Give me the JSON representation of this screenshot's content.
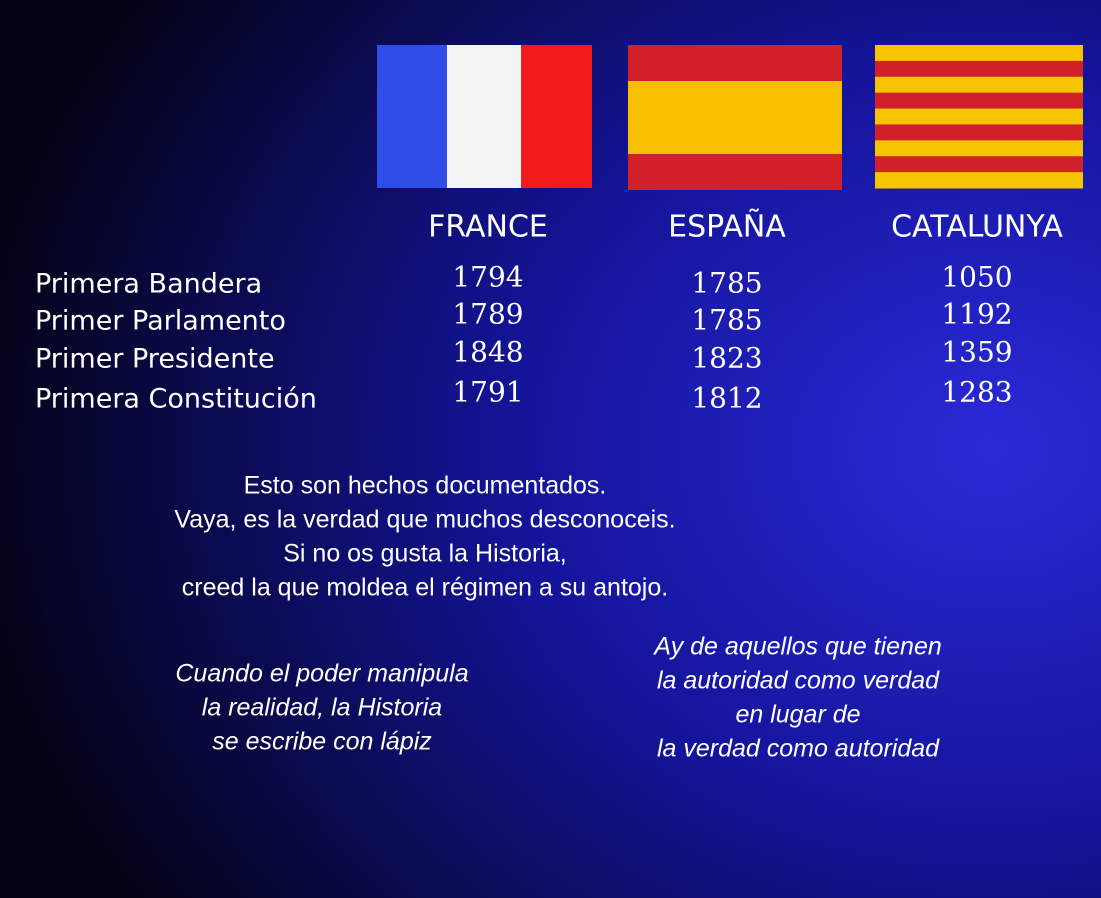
{
  "table": {
    "columns": [
      "FRANCE",
      "ESPAÑA",
      "CATALUNYA"
    ],
    "rows": [
      {
        "label": "Primera Bandera",
        "values": [
          1794,
          1785,
          1050
        ]
      },
      {
        "label": "Primer Parlamento",
        "values": [
          1789,
          1785,
          1192
        ]
      },
      {
        "label": "Primer Presidente",
        "values": [
          1848,
          1823,
          1359
        ]
      },
      {
        "label": "Primera Constitución",
        "values": [
          1791,
          1812,
          1283
        ]
      }
    ]
  },
  "statement": [
    "Esto son hechos documentados.",
    "Vaya, es la verdad que muchos desconoceis.",
    "Si no os gusta la Historia,",
    "creed la que moldea el régimen a su antojo."
  ],
  "quotes": [
    [
      "Cuando el poder manipula",
      "la realidad, la Historia",
      "se escribe con lápiz"
    ],
    [
      "Ay de aquellos que tienen",
      "la autoridad como verdad",
      "en lugar de",
      "la verdad como autoridad"
    ]
  ]
}
